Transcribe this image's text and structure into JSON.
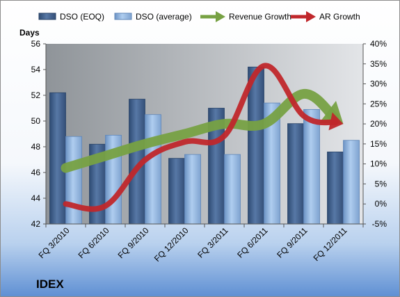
{
  "chart_data": {
    "type": "bar",
    "brand_label": "IDEX",
    "ylabel": "Days",
    "categories": [
      "FQ 3/2010",
      "FQ 6/2010",
      "FQ 9/2010",
      "FQ 12/2010",
      "FQ 3/2011",
      "FQ 6/2011",
      "FQ 9/2011",
      "FQ 12/2011"
    ],
    "ylim": [
      42,
      56
    ],
    "y_ticks": [
      "42",
      "44",
      "46",
      "48",
      "50",
      "52",
      "54",
      "56"
    ],
    "y2lim": [
      -5,
      40
    ],
    "y2_ticks": [
      "-5%",
      "0%",
      "5%",
      "10%",
      "15%",
      "20%",
      "25%",
      "30%",
      "35%",
      "40%"
    ],
    "series": [
      {
        "name": "DSO (EOQ)",
        "type": "bar",
        "axis": "left",
        "color": "#44648F",
        "values": [
          52.2,
          48.2,
          51.7,
          47.1,
          51.0,
          54.2,
          49.8,
          47.6
        ]
      },
      {
        "name": "DSO (average)",
        "type": "bar",
        "axis": "left",
        "color": "#8EB4E0",
        "values": [
          48.8,
          48.9,
          50.5,
          47.4,
          47.4,
          51.4,
          50.9,
          48.5
        ]
      },
      {
        "name": "Revenue Growth",
        "type": "line",
        "axis": "right",
        "color": "#77A143",
        "values": [
          9,
          12,
          15,
          17.5,
          20,
          20,
          27.5,
          20
        ]
      },
      {
        "name": "AR Growth",
        "type": "line",
        "axis": "right",
        "color": "#C0272B",
        "values": [
          0,
          -0.5,
          11,
          15.5,
          17,
          34.5,
          22,
          20
        ]
      }
    ],
    "legend_position": "top",
    "grid": false
  }
}
